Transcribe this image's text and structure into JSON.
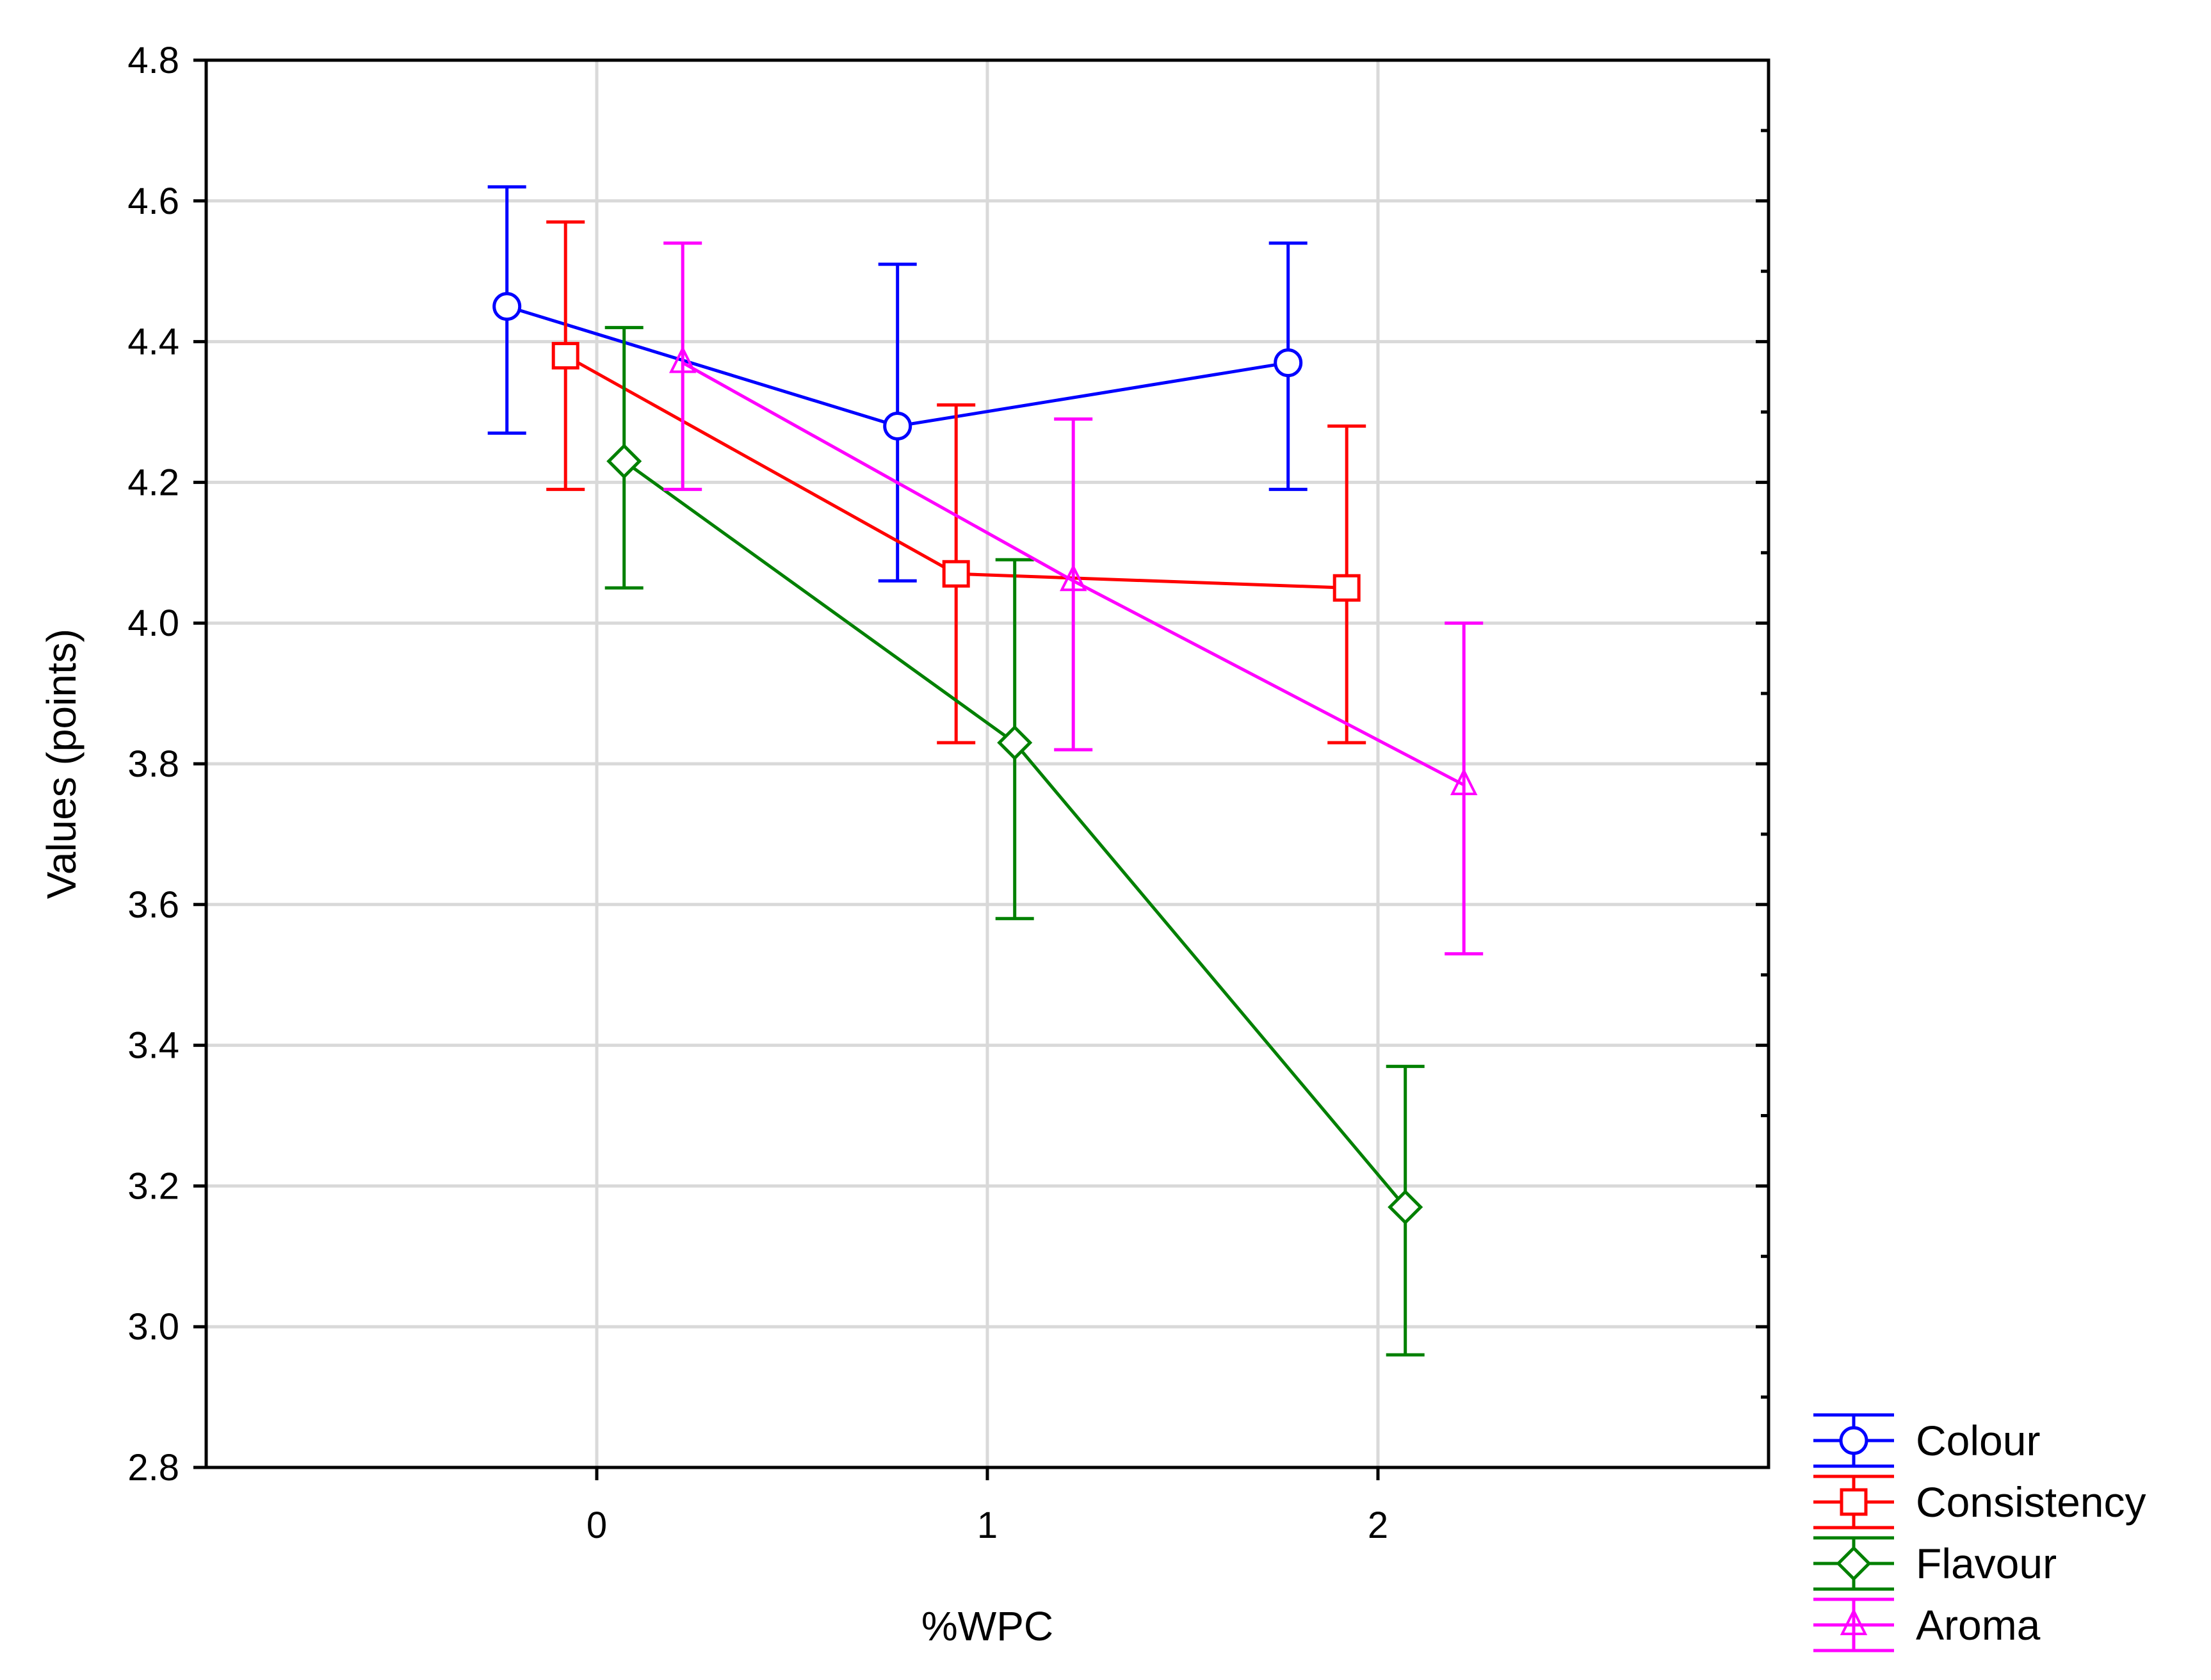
{
  "chart_data": {
    "type": "line",
    "title": "",
    "xlabel": "%WPC",
    "ylabel": "Values (points)",
    "categories": [
      "0",
      "1",
      "2"
    ],
    "x": [
      0,
      1,
      2
    ],
    "xlim": [
      -1,
      3
    ],
    "ylim": [
      2.8,
      4.8
    ],
    "yticks": [
      2.8,
      3.0,
      3.2,
      3.4,
      3.6,
      3.8,
      4.0,
      4.2,
      4.4,
      4.6,
      4.8
    ],
    "ytick_labels": [
      "2.8",
      "3.0",
      "3.2",
      "3.4",
      "3.6",
      "3.8",
      "4.0",
      "4.2",
      "4.4",
      "4.6",
      "4.8"
    ],
    "grid": true,
    "legend_position": "bottom-right, outside plot",
    "series": [
      {
        "name": "Colour",
        "color": "#0000ff",
        "marker": "circle",
        "offset": -0.23,
        "values": [
          4.45,
          4.28,
          4.37
        ],
        "lower": [
          4.27,
          4.06,
          4.19
        ],
        "upper": [
          4.62,
          4.51,
          4.54
        ]
      },
      {
        "name": "Consistency",
        "color": "#ff0000",
        "marker": "square",
        "offset": -0.08,
        "values": [
          4.38,
          4.07,
          4.05
        ],
        "lower": [
          4.19,
          3.83,
          3.83
        ],
        "upper": [
          4.57,
          4.31,
          4.28
        ]
      },
      {
        "name": "Flavour",
        "color": "#008000",
        "marker": "diamond",
        "offset": 0.07,
        "values": [
          4.23,
          3.83,
          3.17
        ],
        "lower": [
          4.05,
          3.58,
          2.96
        ],
        "upper": [
          4.42,
          4.09,
          3.37
        ]
      },
      {
        "name": "Aroma",
        "color": "#ff00ff",
        "marker": "triangle",
        "offset": 0.22,
        "values": [
          4.37,
          4.06,
          3.77
        ],
        "lower": [
          4.19,
          3.82,
          3.53
        ],
        "upper": [
          4.54,
          4.29,
          4.0
        ]
      }
    ]
  }
}
